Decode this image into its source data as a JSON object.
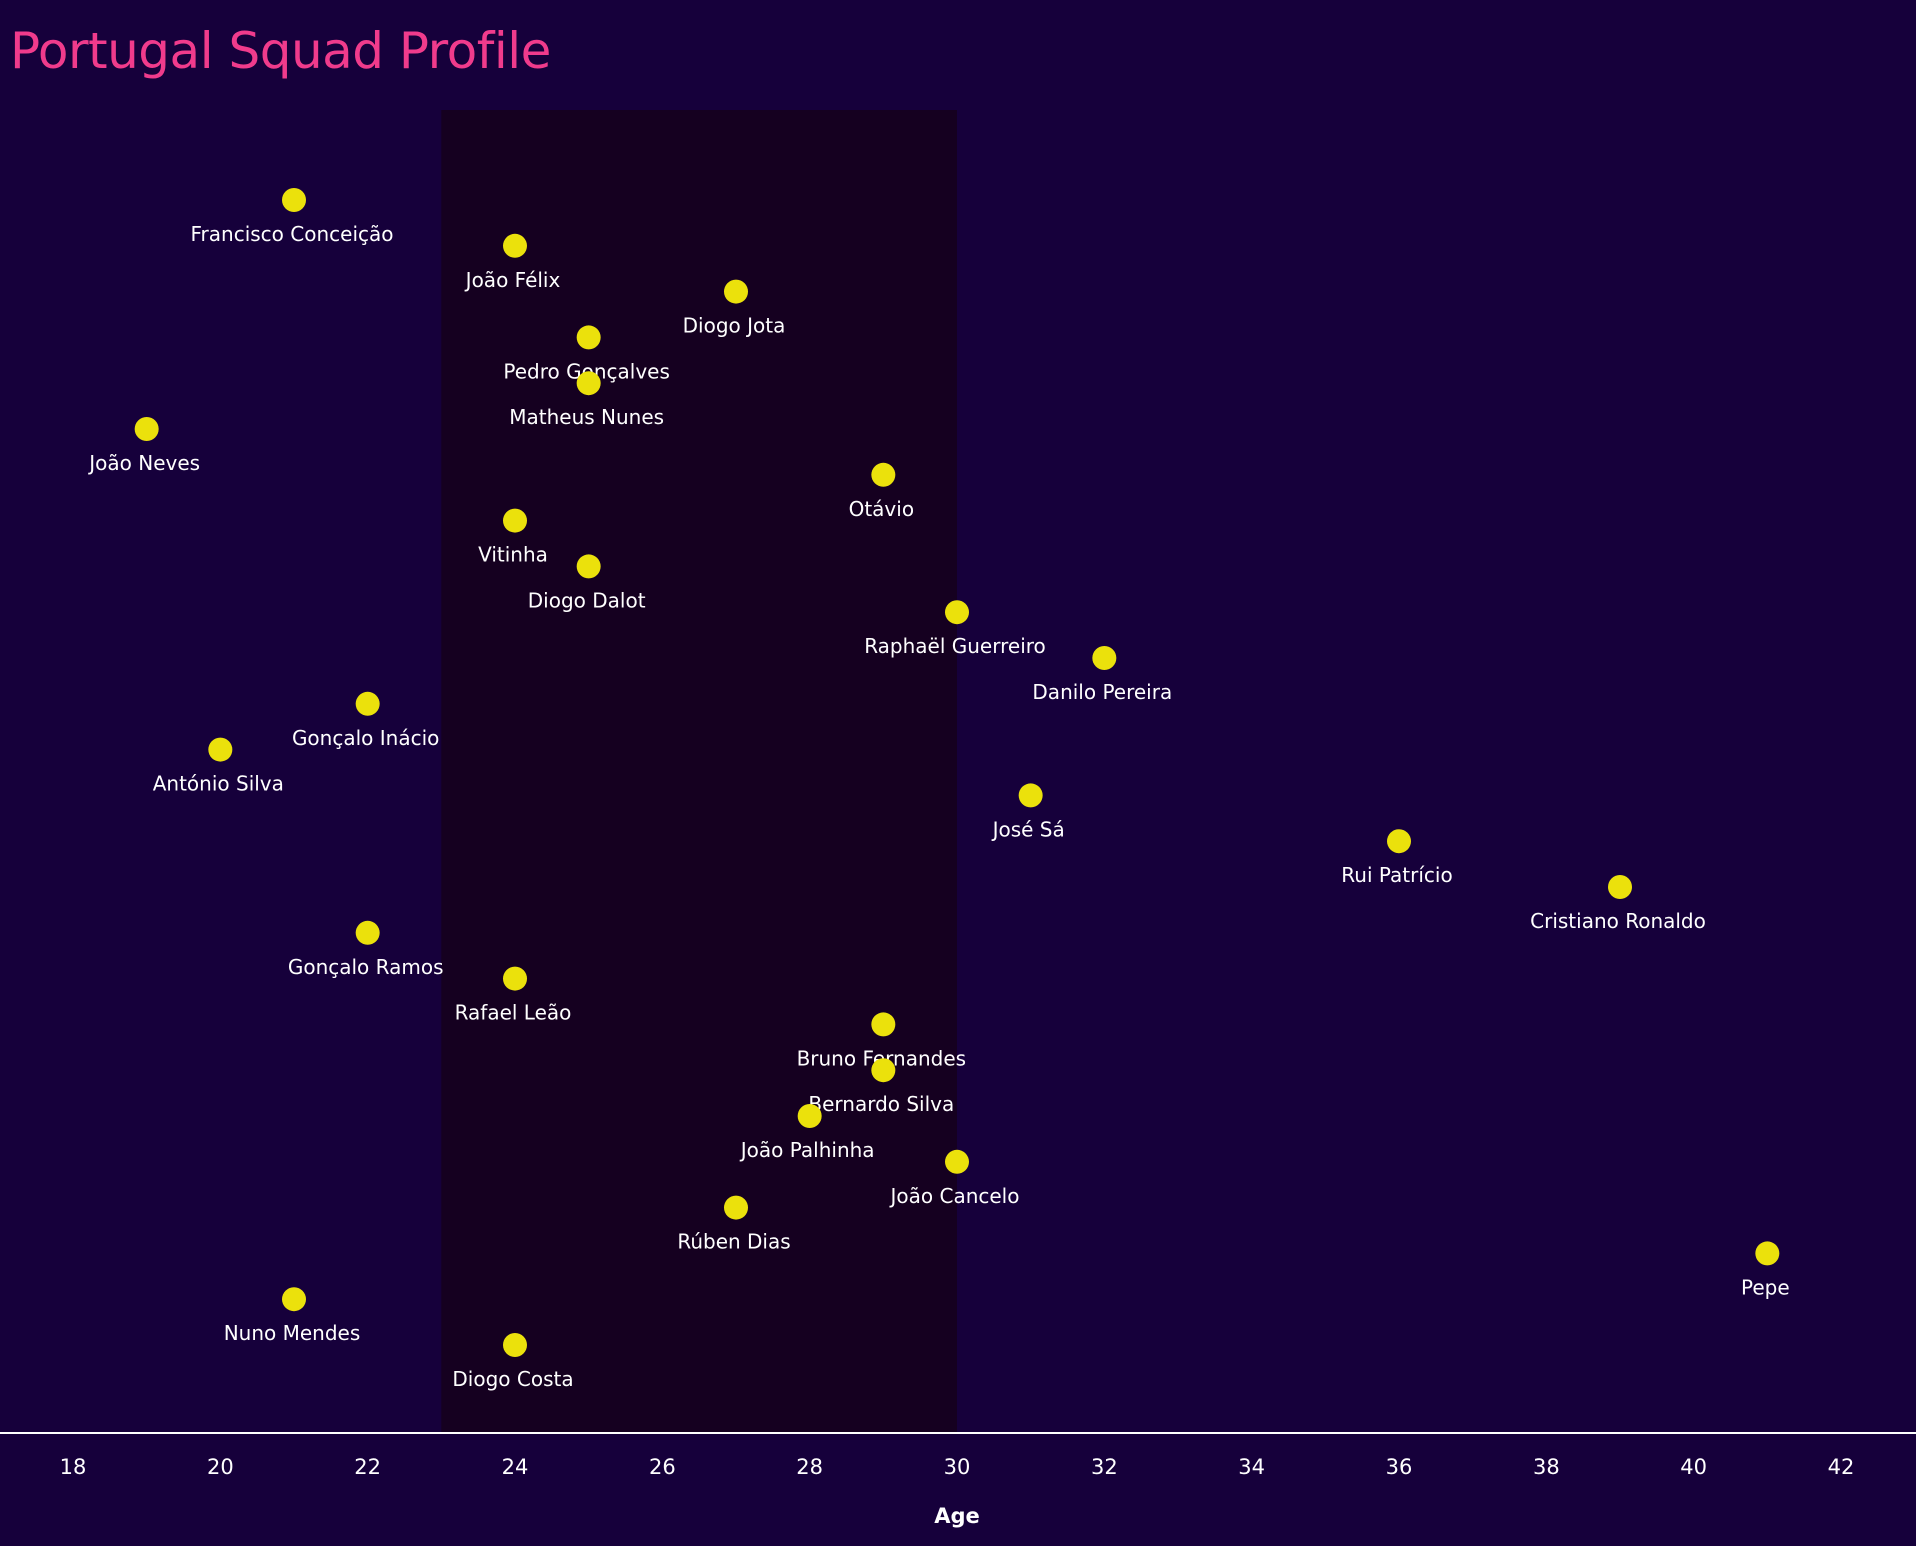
{
  "chart_data": {
    "type": "scatter",
    "title": "Portugal Squad Profile",
    "xlabel": "Age",
    "xlim": [
      18,
      42
    ],
    "xticks": [
      18,
      20,
      22,
      24,
      26,
      28,
      30,
      32,
      34,
      36,
      38,
      40,
      42
    ],
    "grid": false,
    "highlight_band": {
      "from": 23,
      "to": 30
    },
    "colors": {
      "background": "#16003b",
      "band": "#150020",
      "point": "#ebe10c",
      "title": "#f03b8c",
      "text": "#ffffff"
    },
    "points": [
      {
        "name": "Francisco Conceição",
        "age": 21
      },
      {
        "name": "João Félix",
        "age": 24
      },
      {
        "name": "Diogo Jota",
        "age": 27
      },
      {
        "name": "Pedro Gonçalves",
        "age": 25
      },
      {
        "name": "Matheus Nunes",
        "age": 25
      },
      {
        "name": "João Neves",
        "age": 19
      },
      {
        "name": "Otávio",
        "age": 29
      },
      {
        "name": "Vitinha",
        "age": 24
      },
      {
        "name": "Diogo Dalot",
        "age": 25
      },
      {
        "name": "Raphaël Guerreiro",
        "age": 30
      },
      {
        "name": "Danilo Pereira",
        "age": 32
      },
      {
        "name": "Gonçalo Inácio",
        "age": 22
      },
      {
        "name": "António Silva",
        "age": 20
      },
      {
        "name": "José Sá",
        "age": 31
      },
      {
        "name": "Rui Patrício",
        "age": 36
      },
      {
        "name": "Cristiano Ronaldo",
        "age": 39
      },
      {
        "name": "Gonçalo Ramos",
        "age": 22
      },
      {
        "name": "Rafael Leão",
        "age": 24
      },
      {
        "name": "Bruno Fernandes",
        "age": 29
      },
      {
        "name": "Bernardo Silva",
        "age": 29
      },
      {
        "name": "João Palhinha",
        "age": 28
      },
      {
        "name": "João Cancelo",
        "age": 30
      },
      {
        "name": "Rúben Dias",
        "age": 27
      },
      {
        "name": "Pepe",
        "age": 41
      },
      {
        "name": "Nuno Mendes",
        "age": 21
      },
      {
        "name": "Diogo Costa",
        "age": 24
      }
    ]
  }
}
